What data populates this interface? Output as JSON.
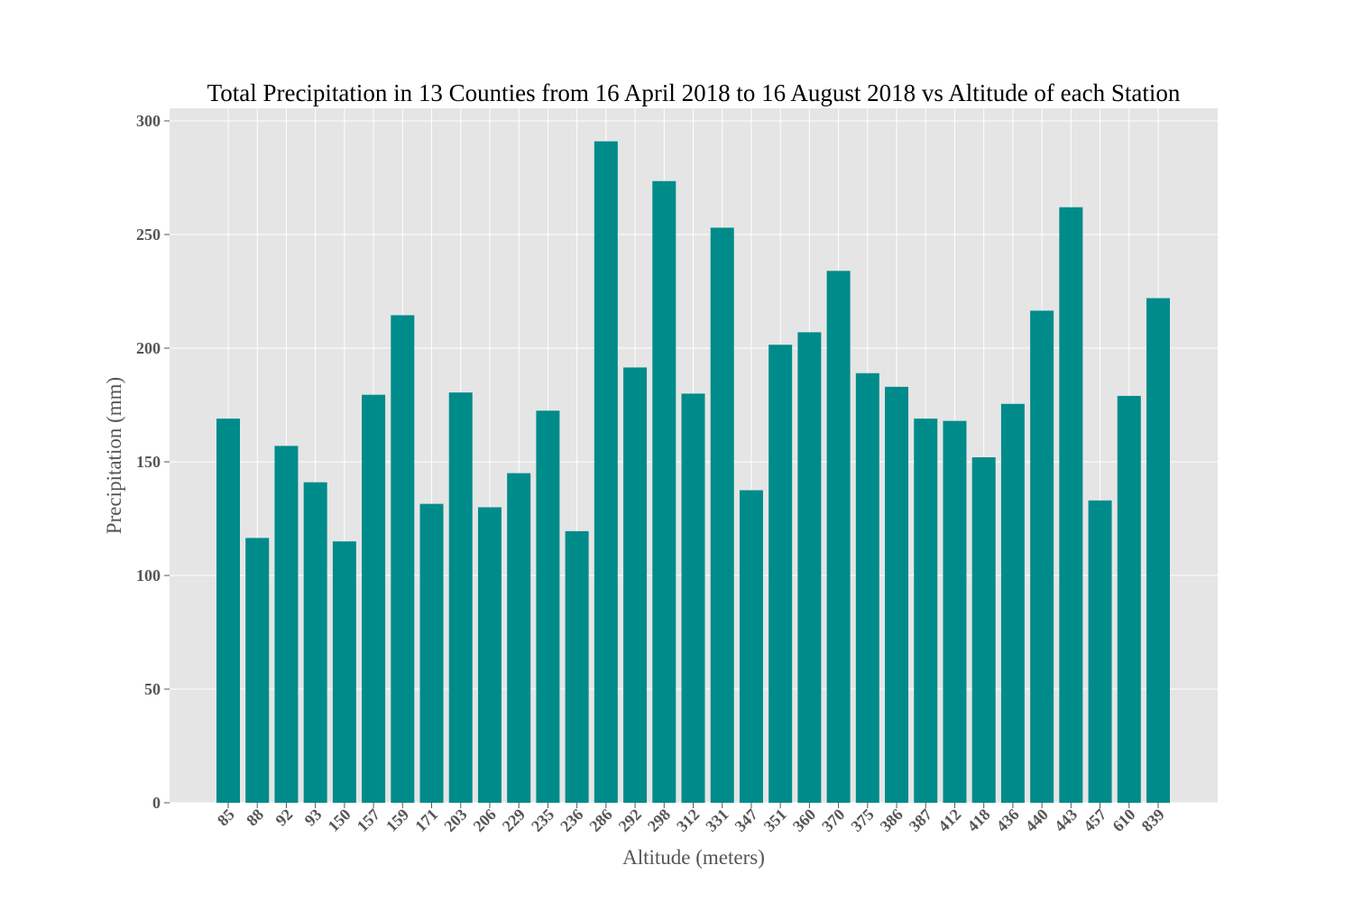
{
  "chart_data": {
    "type": "bar",
    "title": "Total Precipitation in 13 Counties from 16 April 2018 to 16 August 2018 vs Altitude of each Station",
    "xlabel": "Altitude (meters)",
    "ylabel": "Precipitation (mm)",
    "categories": [
      "85",
      "88",
      "92",
      "93",
      "150",
      "157",
      "159",
      "171",
      "203",
      "206",
      "229",
      "235",
      "236",
      "286",
      "292",
      "298",
      "312",
      "331",
      "347",
      "351",
      "360",
      "370",
      "375",
      "386",
      "387",
      "412",
      "418",
      "436",
      "440",
      "443",
      "457",
      "610",
      "839"
    ],
    "values": [
      169.0,
      116.5,
      157.0,
      141.0,
      115.0,
      179.5,
      214.5,
      131.5,
      180.5,
      130.0,
      145.0,
      172.5,
      119.5,
      291.0,
      191.5,
      273.5,
      180.0,
      253.0,
      137.5,
      201.5,
      207.0,
      234.0,
      189.0,
      183.0,
      169.0,
      168.0,
      152.0,
      175.5,
      216.5,
      262.0,
      133.0,
      179.0,
      222.0
    ],
    "yticks": [
      0,
      50,
      100,
      150,
      200,
      250,
      300
    ],
    "ylim": [
      0,
      305
    ],
    "grid": true,
    "colors": {
      "bar": "#008b8b",
      "plot_background": "#e5e5e5",
      "grid": "#ffffff",
      "tick_text": "#555555",
      "title_text": "#000000"
    }
  }
}
